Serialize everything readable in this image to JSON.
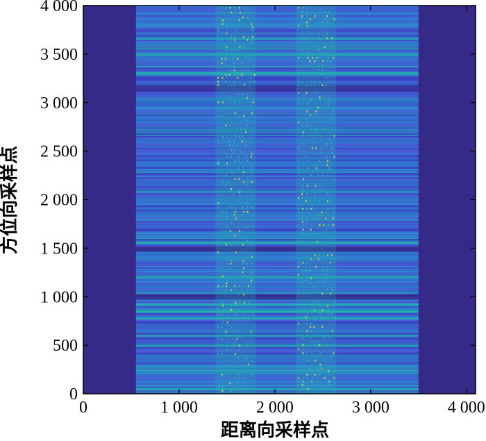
{
  "chart_data": {
    "type": "heatmap",
    "title": "",
    "xlabel": "距离向采样点",
    "ylabel": "方位向采样点",
    "xlim": [
      0,
      4096
    ],
    "ylim": [
      0,
      4000
    ],
    "x_ticks": [
      0,
      1000,
      2000,
      3000,
      4000
    ],
    "y_ticks": [
      0,
      500,
      1000,
      1500,
      2000,
      2500,
      3000,
      3500,
      4000
    ],
    "x_tick_labels": [
      "0",
      "1 000",
      "2 000",
      "3 000",
      "4 000"
    ],
    "y_tick_labels": [
      "0",
      "500",
      "1 000",
      "1 500",
      "2 000",
      "2 500",
      "3 000",
      "3 500",
      "4 000"
    ],
    "signal_region_x": [
      550,
      3500
    ],
    "bright_bands_x": [
      [
        1380,
        1800
      ],
      [
        2220,
        2640
      ]
    ],
    "dark_row_gaps_y": [
      1000,
      1500,
      3150
    ],
    "colormap": "parula",
    "colors": {
      "background": "#352a87",
      "low": "#3b45c4",
      "mid": "#2d8fd0",
      "high": "#21b7b0",
      "peak": "#d1d84a"
    }
  }
}
